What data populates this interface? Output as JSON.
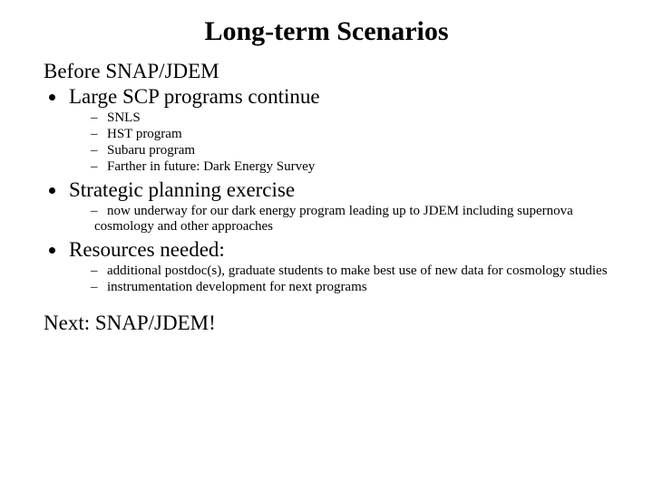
{
  "title": "Long-term Scenarios",
  "intro": "Before SNAP/JDEM",
  "b1": {
    "label": "Large SCP programs continue",
    "subs": {
      "s0": "SNLS",
      "s1": "HST program",
      "s2": "Subaru program",
      "s3": "Farther in future:  Dark Energy Survey"
    }
  },
  "b2": {
    "label": "Strategic planning exercise",
    "subs": {
      "s0": "now underway for our dark energy program leading up to JDEM including supernova cosmology and other approaches"
    }
  },
  "b3": {
    "label": "Resources needed:",
    "subs": {
      "s0": "additional postdoc(s), graduate students to make best use of new data for cosmology studies",
      "s1": "instrumentation development for next programs"
    }
  },
  "closer": "Next: SNAP/JDEM!",
  "colors": {
    "background": "#ffffff",
    "text": "#000000"
  },
  "fonts": {
    "family": "Times New Roman",
    "title_size_pt": 30,
    "bullet_size_pt": 23,
    "sub_size_pt": 15
  }
}
